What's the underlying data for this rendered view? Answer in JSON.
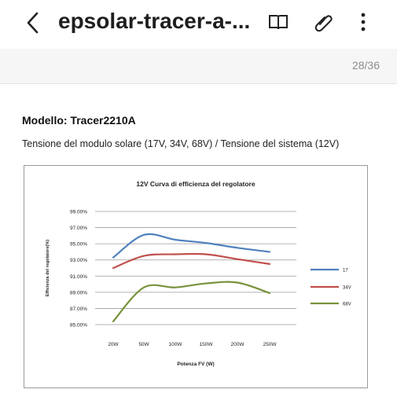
{
  "header": {
    "title": "epsolar-tracer-a-...",
    "icons": [
      "back-chevron",
      "book-icon",
      "paperclip-icon",
      "more-vert-icon"
    ]
  },
  "page_indicator": "28/36",
  "document": {
    "model_heading": "Modello: Tracer2210A",
    "subtitle": "Tensione del modulo solare (17V, 34V, 68V) / Tensione del sistema (12V)"
  },
  "chart_data": {
    "type": "line",
    "title": "12V Curva di efficienza del regolatore",
    "xlabel": "Potenza FV (W)",
    "ylabel": "Efficienza del regolatore(%)",
    "categories": [
      "20W",
      "50W",
      "100W",
      "150W",
      "200W",
      "250W"
    ],
    "yticks": [
      "99.00%",
      "97.00%",
      "95.00%",
      "93.00%",
      "91.00%",
      "89.00%",
      "87.00%",
      "85.00%"
    ],
    "ylim": [
      85,
      99
    ],
    "grid": true,
    "legend_position": "right",
    "series": [
      {
        "name": "17",
        "color": "#4f81bd",
        "values": [
          93.3,
          96.1,
          95.5,
          95.1,
          94.5,
          94.0
        ]
      },
      {
        "name": "34V",
        "color": "#c0504d",
        "values": [
          92.0,
          93.5,
          93.7,
          93.7,
          93.1,
          92.5
        ]
      },
      {
        "name": "68V",
        "color": "#77933c",
        "values": [
          85.4,
          89.6,
          89.6,
          90.1,
          90.2,
          88.9
        ]
      }
    ]
  }
}
